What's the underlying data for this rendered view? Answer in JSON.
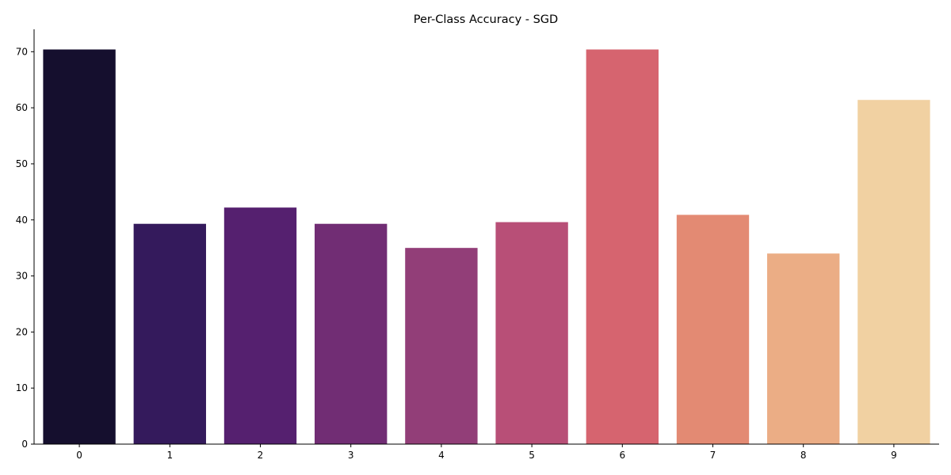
{
  "chart_data": {
    "type": "bar",
    "title": "Per-Class Accuracy - SGD",
    "xlabel": "",
    "ylabel": "",
    "categories": [
      "0",
      "1",
      "2",
      "3",
      "4",
      "5",
      "6",
      "7",
      "8",
      "9"
    ],
    "values": [
      70.4,
      39.3,
      42.2,
      39.3,
      35.0,
      39.6,
      70.4,
      40.9,
      34.0,
      61.4
    ],
    "colors": [
      "#150f2e",
      "#341a5c",
      "#55206f",
      "#712d74",
      "#923e78",
      "#b84f77",
      "#d6646f",
      "#e38a73",
      "#ebad85",
      "#f1d1a2"
    ],
    "ylim": [
      0,
      74
    ],
    "yticks": [
      0,
      10,
      20,
      30,
      40,
      50,
      60,
      70
    ],
    "grid": false,
    "legend": "none"
  }
}
